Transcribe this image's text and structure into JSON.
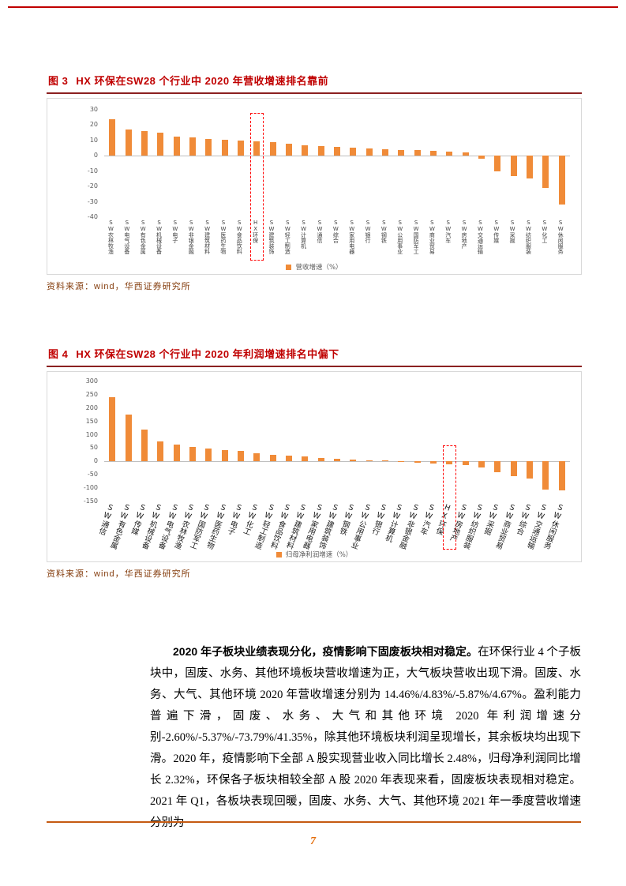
{
  "page": {
    "number": "7"
  },
  "figure3": {
    "label": "图 3",
    "title": "HX 环保在SW28 个行业中 2020 年营收增速排名靠前",
    "source": "资料来源：wind，华西证券研究所"
  },
  "figure4": {
    "label": "图 4",
    "title": "HX 环保在SW28 个行业中 2020 年利润增速排名中偏下",
    "source": "资料来源：wind，华西证券研究所"
  },
  "paragraph": {
    "lead_bold": "2020 年子板块业绩表现分化，疫情影响下固废板块相对稳定。",
    "body": "在环保行业 4 个子板块中，固废、水务、其他环境板块营收增速为正，大气板块营收出现下滑。固废、水务、大气、其他环境 2020 年营收增速分别为 14.46%/4.83%/-5.87%/4.67%。盈利能力普遍下滑，固废、水务、大气和其他环境 2020 年利润增速分别-2.60%/-5.37%/-73.79%/41.35%，除其他环境板块利润呈现增长，其余板块均出现下滑。2020 年，疫情影响下全部 A 股实现营业收入同比增长 2.48%，归母净利润同比增长 2.32%，环保各子板块相较全部 A 股 2020 年表现来看，固废板块表现相对稳定。2021 年 Q1，各板块表现回暖，固废、水务、大气、其他环境 2021 年一季度营收增速分别为"
  },
  "colors": {
    "bar_orange": "#F08B38",
    "title_red": "#C00000",
    "title_rule_dark_red": "#8B2020",
    "source_brown": "#843C0C",
    "footer_rule_orange": "#C55A11",
    "page_number_orange": "#E36C09",
    "highlight_dashed_red": "#FF0000"
  },
  "chart_data": [
    {
      "type": "bar",
      "title": "HX 环保在SW28 个行业中 2020 年营收增速排名靠前",
      "legend": "营收增速（%）",
      "legend_position": "bottom",
      "grid": false,
      "xlabel": "",
      "ylabel": "",
      "ylim": [
        -40,
        30
      ],
      "yticks": [
        30,
        20,
        10,
        0,
        -10,
        -20,
        -30,
        -40
      ],
      "highlight": "HX环保",
      "categories": [
        "SW农林牧渔",
        "SW电气设备",
        "SW有色金属",
        "SW机械设备",
        "SW电子",
        "SW非银金融",
        "SW建筑材料",
        "SW医药生物",
        "SW食品饮料",
        "HX环保",
        "SW建筑装饰",
        "SW轻工制造",
        "SW计算机",
        "SW通信",
        "SW综合",
        "SW家用电器",
        "SW银行",
        "SW钢铁",
        "SW公用事业",
        "SW国防军工",
        "SW商业贸易",
        "SW汽车",
        "SW房地产",
        "SW交通运输",
        "SW传媒",
        "SW采掘",
        "SW纺织服装",
        "SW化工",
        "SW休闲服务"
      ],
      "values": [
        24,
        17,
        16,
        15,
        12.5,
        12,
        11,
        10.5,
        10,
        9.5,
        9,
        8,
        7,
        6.5,
        6,
        5.5,
        5,
        4.5,
        4,
        3.5,
        3,
        2.5,
        2,
        -2,
        -10,
        -13,
        -15,
        -21,
        -32
      ]
    },
    {
      "type": "bar",
      "title": "HX 环保在SW28 个行业中 2020 年利润增速排名中偏下",
      "legend": "归母净利润增速（%）",
      "legend_position": "bottom",
      "grid": false,
      "xlabel": "",
      "ylabel": "",
      "ylim": [
        -150,
        300
      ],
      "yticks": [
        300,
        250,
        200,
        150,
        100,
        50,
        0,
        -50,
        -100,
        -150
      ],
      "highlight": "HX环保",
      "categories": [
        "SW通信",
        "SW有色金属",
        "SW传媒",
        "SW机械设备",
        "SW电气设备",
        "SW农林牧渔",
        "SW国防军工",
        "SW医药生物",
        "SW电子",
        "SW化工",
        "SW轻工制造",
        "SW食品饮料",
        "SW建筑材料",
        "SW家用电器",
        "SW建筑装饰",
        "SW钢铁",
        "SW公用事业",
        "SW银行",
        "SW计算机",
        "SW非银金融",
        "SW汽车",
        "HX环保",
        "SW房地产",
        "SW纺织服装",
        "SW采掘",
        "SW商业贸易",
        "SW综合",
        "SW交通运输",
        "SW休闲服务"
      ],
      "values": [
        240,
        175,
        120,
        75,
        62,
        55,
        48,
        42,
        38,
        30,
        26,
        22,
        18,
        14,
        10,
        7,
        5,
        4,
        2,
        -4,
        -7,
        -10,
        -15,
        -22,
        -40,
        -55,
        -65,
        -105,
        -110
      ]
    }
  ]
}
